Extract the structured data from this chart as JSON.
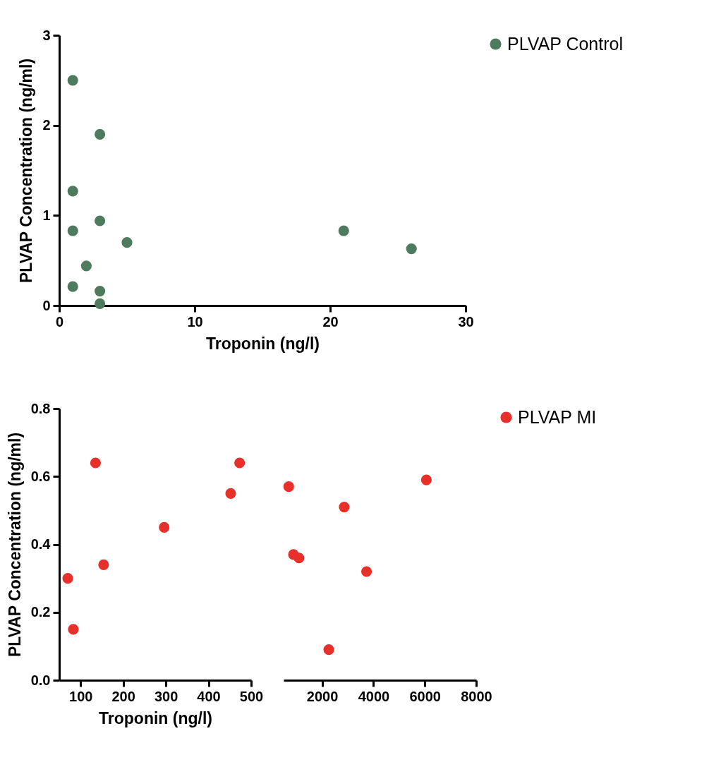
{
  "chart_data": [
    {
      "type": "scatter",
      "xlabel": "Troponin (ng/l)",
      "ylabel": "PLVAP Concentration (ng/ml)",
      "xlim": [
        0,
        30
      ],
      "ylim": [
        0,
        3
      ],
      "xticks": [
        0,
        10,
        20,
        30
      ],
      "yticks": [
        0,
        1,
        2,
        3
      ],
      "grid": false,
      "legend": "top right",
      "marker": "circle",
      "series": [
        {
          "name": "PLVAP Control",
          "color": "#4e7a5e",
          "x": [
            1,
            3,
            1,
            1,
            3,
            5,
            2,
            1,
            3,
            3,
            21,
            26
          ],
          "values": [
            2.5,
            1.9,
            1.27,
            0.83,
            0.94,
            0.7,
            0.44,
            0.21,
            0.16,
            0.02,
            0.83,
            0.63
          ]
        }
      ]
    },
    {
      "type": "scatter",
      "xlabel": "Troponin (ng/l)",
      "ylabel": "PLVAP Concentration (ng/ml)",
      "xlim": [
        50,
        500
      ],
      "ylim": [
        0,
        0.8
      ],
      "xticks": [
        100,
        200,
        300,
        400,
        500
      ],
      "yticks": [
        {
          "value": 0,
          "label": "0.0"
        },
        0.2,
        0.4,
        0.6,
        0.8
      ],
      "grid": false,
      "marker": "circle",
      "series": [
        {
          "color": "#e8302b",
          "x": [
            70,
            83,
            135,
            154,
            296,
            452,
            473
          ],
          "values": [
            0.3,
            0.15,
            0.64,
            0.34,
            0.45,
            0.55,
            0.64
          ]
        }
      ]
    },
    {
      "type": "scatter",
      "xlim": [
        500,
        8000
      ],
      "ylim": [
        0,
        0.8
      ],
      "xticks": [
        2000,
        4000,
        6000,
        8000
      ],
      "tick_labels": "x",
      "grid": false,
      "legend": "top right",
      "marker": "circle",
      "series": [
        {
          "name": "PLVAP MI",
          "color": "#e8302b",
          "x": [
            700,
            885,
            1100,
            2260,
            2860,
            3730,
            6060
          ],
          "values": [
            0.57,
            0.37,
            0.36,
            0.09,
            0.51,
            0.32,
            0.59
          ]
        }
      ]
    }
  ]
}
